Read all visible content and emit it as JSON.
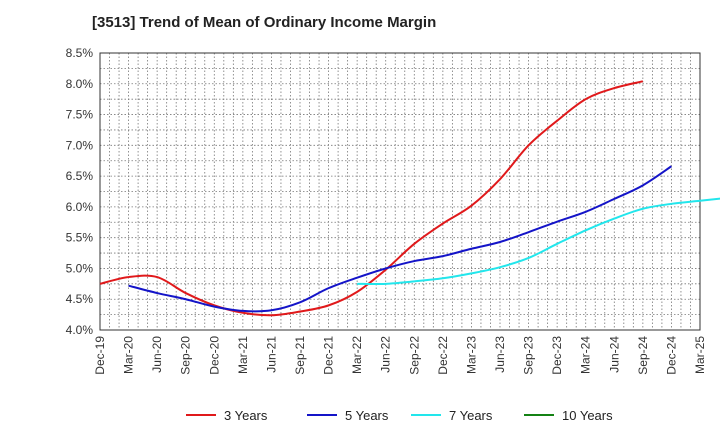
{
  "chart_data": {
    "type": "line",
    "title": "[3513]  Trend of Mean of Ordinary Income Margin",
    "xlabel": "",
    "ylabel": "",
    "x_ticks": [
      "Dec-19",
      "Mar-20",
      "Jun-20",
      "Sep-20",
      "Dec-20",
      "Mar-21",
      "Jun-21",
      "Sep-21",
      "Dec-21",
      "Mar-22",
      "Jun-22",
      "Sep-22",
      "Dec-22",
      "Mar-23",
      "Jun-23",
      "Sep-23",
      "Dec-23",
      "Mar-24",
      "Jun-24",
      "Sep-24",
      "Dec-24",
      "Mar-25"
    ],
    "y_ticks": [
      "4.0%",
      "4.5%",
      "5.0%",
      "5.5%",
      "6.0%",
      "6.5%",
      "7.0%",
      "7.5%",
      "8.0%",
      "8.5%"
    ],
    "ylim": [
      4.0,
      8.5
    ],
    "grid": true,
    "legend_position": "bottom",
    "series": [
      {
        "name": "3 Years",
        "color": "#e0191b",
        "start_index": 0,
        "values": [
          4.75,
          4.86,
          4.86,
          4.6,
          4.4,
          4.28,
          4.24,
          4.3,
          4.4,
          4.62,
          4.98,
          5.4,
          5.73,
          6.02,
          6.45,
          7.0,
          7.4,
          7.75,
          7.93,
          8.04
        ]
      },
      {
        "name": "5 Years",
        "color": "#1414c8",
        "start_index": 1,
        "values": [
          4.72,
          4.6,
          4.5,
          4.38,
          4.31,
          4.32,
          4.45,
          4.68,
          4.85,
          5.0,
          5.12,
          5.2,
          5.32,
          5.43,
          5.59,
          5.76,
          5.92,
          6.13,
          6.35,
          6.66
        ]
      },
      {
        "name": "7 Years",
        "color": "#22e6ec",
        "start_index": 9,
        "values": [
          4.75,
          4.75,
          4.79,
          4.84,
          4.92,
          5.02,
          5.17,
          5.4,
          5.62,
          5.81,
          5.97,
          6.05,
          6.1,
          6.15
        ]
      },
      {
        "name": "10 Years",
        "color": "#148214",
        "start_index": 0,
        "values": []
      }
    ]
  }
}
